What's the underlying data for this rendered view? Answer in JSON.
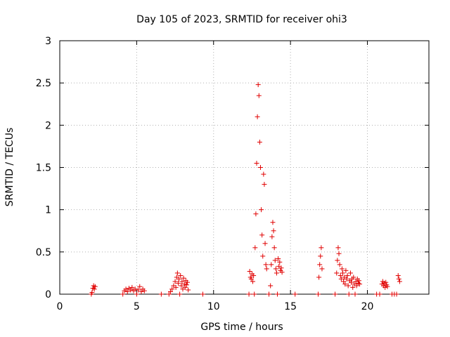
{
  "chart_data": {
    "type": "scatter",
    "title": "Day 105 of 2023, SRMTID for receiver ohi3",
    "xlabel": "GPS time / hours",
    "ylabel": "SRMTID / TECUs",
    "xlim": [
      0,
      24
    ],
    "ylim": [
      0,
      3
    ],
    "xticks": [
      0,
      5,
      10,
      15,
      20
    ],
    "yticks": [
      0,
      0.5,
      1,
      1.5,
      2,
      2.5,
      3
    ],
    "ytick_labels": [
      "0",
      "0.5",
      "1",
      "1.5",
      "2",
      "2.5",
      "3"
    ],
    "grid": true,
    "marker": "+",
    "color": "#e00000",
    "series": [
      {
        "name": "ohi3",
        "points": [
          [
            2.05,
            0.0
          ],
          [
            2.1,
            0.02
          ],
          [
            2.15,
            0.07
          ],
          [
            2.2,
            0.1
          ],
          [
            2.25,
            0.06
          ],
          [
            2.3,
            0.09
          ],
          [
            4.1,
            0.0
          ],
          [
            4.2,
            0.04
          ],
          [
            4.3,
            0.06
          ],
          [
            4.4,
            0.03
          ],
          [
            4.5,
            0.07
          ],
          [
            4.6,
            0.05
          ],
          [
            4.7,
            0.08
          ],
          [
            4.8,
            0.04
          ],
          [
            4.9,
            0.06
          ],
          [
            5.0,
            0.0
          ],
          [
            5.1,
            0.05
          ],
          [
            5.2,
            0.09
          ],
          [
            5.3,
            0.03
          ],
          [
            5.4,
            0.06
          ],
          [
            5.5,
            0.04
          ],
          [
            6.6,
            0.0
          ],
          [
            7.1,
            0.0
          ],
          [
            7.2,
            0.03
          ],
          [
            7.3,
            0.06
          ],
          [
            7.4,
            0.1
          ],
          [
            7.5,
            0.15
          ],
          [
            7.55,
            0.08
          ],
          [
            7.6,
            0.2
          ],
          [
            7.65,
            0.25
          ],
          [
            7.7,
            0.13
          ],
          [
            7.75,
            0.18
          ],
          [
            7.8,
            0.0
          ],
          [
            7.85,
            0.22
          ],
          [
            7.9,
            0.1
          ],
          [
            7.95,
            0.15
          ],
          [
            8.0,
            0.06
          ],
          [
            8.05,
            0.19
          ],
          [
            8.1,
            0.12
          ],
          [
            8.15,
            0.08
          ],
          [
            8.2,
            0.16
          ],
          [
            8.25,
            0.11
          ],
          [
            8.3,
            0.14
          ],
          [
            8.35,
            0.05
          ],
          [
            9.3,
            0.0
          ],
          [
            12.3,
            0.0
          ],
          [
            12.35,
            0.27
          ],
          [
            12.4,
            0.2
          ],
          [
            12.45,
            0.18
          ],
          [
            12.5,
            0.24
          ],
          [
            12.55,
            0.15
          ],
          [
            12.6,
            0.22
          ],
          [
            12.65,
            0.0
          ],
          [
            12.7,
            0.55
          ],
          [
            12.75,
            0.95
          ],
          [
            12.8,
            1.55
          ],
          [
            12.85,
            2.1
          ],
          [
            12.9,
            2.48
          ],
          [
            12.95,
            2.35
          ],
          [
            13.0,
            1.8
          ],
          [
            13.05,
            1.5
          ],
          [
            13.1,
            1.0
          ],
          [
            13.15,
            0.7
          ],
          [
            13.2,
            0.45
          ],
          [
            13.25,
            1.42
          ],
          [
            13.3,
            1.3
          ],
          [
            13.35,
            0.6
          ],
          [
            13.4,
            0.35
          ],
          [
            13.45,
            0.3
          ],
          [
            13.6,
            0.0
          ],
          [
            13.7,
            0.1
          ],
          [
            13.75,
            0.35
          ],
          [
            13.8,
            0.68
          ],
          [
            13.85,
            0.85
          ],
          [
            13.9,
            0.75
          ],
          [
            13.95,
            0.55
          ],
          [
            14.0,
            0.4
          ],
          [
            14.05,
            0.3
          ],
          [
            14.1,
            0.25
          ],
          [
            14.15,
            0.0
          ],
          [
            14.2,
            0.42
          ],
          [
            14.25,
            0.33
          ],
          [
            14.3,
            0.38
          ],
          [
            14.35,
            0.28
          ],
          [
            14.4,
            0.31
          ],
          [
            14.45,
            0.26
          ],
          [
            15.3,
            0.0
          ],
          [
            16.8,
            0.0
          ],
          [
            16.85,
            0.2
          ],
          [
            16.9,
            0.35
          ],
          [
            16.95,
            0.45
          ],
          [
            17.0,
            0.55
          ],
          [
            17.05,
            0.3
          ],
          [
            17.9,
            0.0
          ],
          [
            18.0,
            0.25
          ],
          [
            18.05,
            0.4
          ],
          [
            18.1,
            0.55
          ],
          [
            18.15,
            0.48
          ],
          [
            18.2,
            0.35
          ],
          [
            18.25,
            0.22
          ],
          [
            18.3,
            0.18
          ],
          [
            18.35,
            0.3
          ],
          [
            18.4,
            0.25
          ],
          [
            18.45,
            0.15
          ],
          [
            18.5,
            0.2
          ],
          [
            18.55,
            0.12
          ],
          [
            18.6,
            0.28
          ],
          [
            18.65,
            0.18
          ],
          [
            18.7,
            0.22
          ],
          [
            18.75,
            0.1
          ],
          [
            18.8,
            0.0
          ],
          [
            18.85,
            0.16
          ],
          [
            18.9,
            0.25
          ],
          [
            18.95,
            0.14
          ],
          [
            19.0,
            0.18
          ],
          [
            19.05,
            0.08
          ],
          [
            19.1,
            0.2
          ],
          [
            19.15,
            0.12
          ],
          [
            19.2,
            0.0
          ],
          [
            19.25,
            0.15
          ],
          [
            19.3,
            0.1
          ],
          [
            19.35,
            0.18
          ],
          [
            19.4,
            0.13
          ],
          [
            19.45,
            0.16
          ],
          [
            19.5,
            0.12
          ],
          [
            20.6,
            0.0
          ],
          [
            20.8,
            0.0
          ],
          [
            20.95,
            0.12
          ],
          [
            21.0,
            0.15
          ],
          [
            21.05,
            0.1
          ],
          [
            21.1,
            0.13
          ],
          [
            21.15,
            0.08
          ],
          [
            21.2,
            0.14
          ],
          [
            21.25,
            0.11
          ],
          [
            21.3,
            0.09
          ],
          [
            21.6,
            0.0
          ],
          [
            21.75,
            0.0
          ],
          [
            21.9,
            0.0
          ],
          [
            22.0,
            0.22
          ],
          [
            22.05,
            0.18
          ],
          [
            22.1,
            0.15
          ]
        ]
      }
    ]
  }
}
